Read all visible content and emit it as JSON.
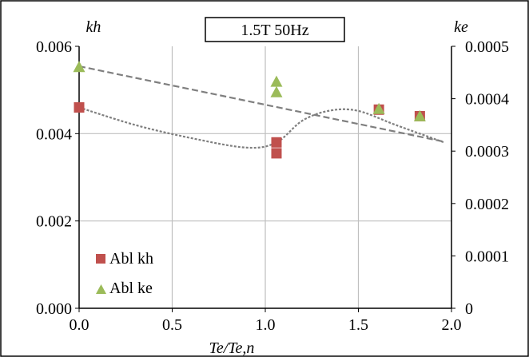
{
  "chart_data": {
    "type": "scatter",
    "title": "1.5T 50Hz",
    "xlabel": "Te/Te,n",
    "ylabel_left": "kh",
    "ylabel_right": "ke",
    "xlim": [
      0,
      2.0
    ],
    "ylim_left": [
      0,
      0.006
    ],
    "ylim_right": [
      0,
      0.0005
    ],
    "x_ticks": [
      "0.0",
      "0.5",
      "1.0",
      "1.5",
      "2.0"
    ],
    "y_left_ticks": [
      "0.000",
      "0.002",
      "0.004",
      "0.006"
    ],
    "y_right_ticks": [
      "0",
      "0.0001",
      "0.0002",
      "0.0003",
      "0.0004",
      "0.0005"
    ],
    "grid": true,
    "legend_position": "bottom-left",
    "colors": {
      "kh": "#c0504d",
      "ke": "#9bbb59",
      "trend": "#7f7f7f"
    },
    "series": [
      {
        "name": "Abl kh",
        "axis": "left",
        "marker": "square",
        "points": [
          [
            0.0,
            0.0046
          ],
          [
            1.06,
            0.0038
          ],
          [
            1.06,
            0.00355
          ],
          [
            1.61,
            0.00455
          ],
          [
            1.83,
            0.0044
          ]
        ]
      },
      {
        "name": "Abl ke",
        "axis": "right",
        "marker": "triangle",
        "points": [
          [
            0.0,
            0.00046
          ],
          [
            1.06,
            0.000432
          ],
          [
            1.06,
            0.000412
          ],
          [
            1.61,
            0.00038
          ],
          [
            1.83,
            0.000366
          ]
        ]
      }
    ],
    "trendlines": [
      {
        "style": "dotted",
        "axis": "left",
        "points": [
          [
            0.0,
            0.0046
          ],
          [
            0.3,
            0.0042
          ],
          [
            0.6,
            0.0039
          ],
          [
            0.9,
            0.00368
          ],
          [
            1.06,
            0.0038
          ],
          [
            1.2,
            0.0043
          ],
          [
            1.35,
            0.00453
          ],
          [
            1.5,
            0.00452
          ],
          [
            1.7,
            0.0042
          ],
          [
            1.96,
            0.0038
          ]
        ]
      },
      {
        "style": "dashed",
        "axis": "right",
        "points": [
          [
            0.0,
            0.000462
          ],
          [
            1.96,
            0.000318
          ]
        ]
      }
    ]
  }
}
